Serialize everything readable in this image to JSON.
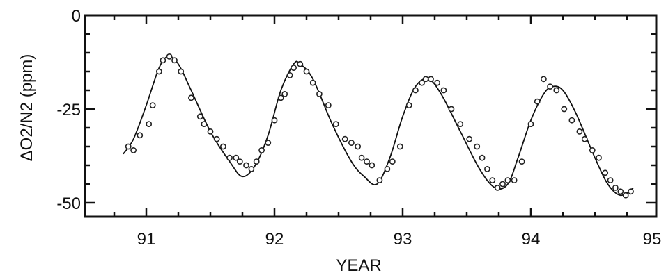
{
  "chart_data": {
    "type": "scatter",
    "title": "",
    "xlabel": "YEAR",
    "ylabel": "ΔO2/N2 (ppm)",
    "xlim": [
      90.5,
      95
    ],
    "ylim": [
      -52,
      0
    ],
    "x_ticks": [
      91,
      92,
      93,
      94,
      95
    ],
    "x_tick_labels": [
      "91",
      "92",
      "93",
      "94",
      "95"
    ],
    "y_ticks": [
      0,
      -25,
      -50
    ],
    "y_tick_labels": [
      "0",
      "-25",
      "-50"
    ],
    "grid": false,
    "legend": "none",
    "series": [
      {
        "kind": "fitted-curve",
        "points": [
          [
            90.82,
            -37
          ],
          [
            90.9,
            -33
          ],
          [
            91.0,
            -24
          ],
          [
            91.1,
            -14
          ],
          [
            91.17,
            -11
          ],
          [
            91.25,
            -13
          ],
          [
            91.35,
            -20
          ],
          [
            91.5,
            -31
          ],
          [
            91.65,
            -39
          ],
          [
            91.75,
            -43
          ],
          [
            91.85,
            -40
          ],
          [
            91.95,
            -32
          ],
          [
            92.05,
            -20
          ],
          [
            92.15,
            -13
          ],
          [
            92.2,
            -13
          ],
          [
            92.3,
            -17
          ],
          [
            92.45,
            -29
          ],
          [
            92.6,
            -39
          ],
          [
            92.7,
            -43
          ],
          [
            92.8,
            -45
          ],
          [
            92.9,
            -38
          ],
          [
            93.0,
            -27
          ],
          [
            93.1,
            -19
          ],
          [
            93.2,
            -17
          ],
          [
            93.3,
            -21
          ],
          [
            93.45,
            -31
          ],
          [
            93.6,
            -41
          ],
          [
            93.72,
            -46
          ],
          [
            93.82,
            -45
          ],
          [
            93.9,
            -38
          ],
          [
            94.0,
            -28
          ],
          [
            94.1,
            -21
          ],
          [
            94.17,
            -19
          ],
          [
            94.25,
            -20
          ],
          [
            94.35,
            -26
          ],
          [
            94.5,
            -38
          ],
          [
            94.6,
            -45
          ],
          [
            94.7,
            -48
          ],
          [
            94.8,
            -46
          ]
        ]
      },
      {
        "kind": "observations",
        "points": [
          [
            90.86,
            -35
          ],
          [
            90.9,
            -36
          ],
          [
            90.95,
            -32
          ],
          [
            91.02,
            -29
          ],
          [
            91.05,
            -24
          ],
          [
            91.1,
            -15
          ],
          [
            91.13,
            -12
          ],
          [
            91.18,
            -11
          ],
          [
            91.22,
            -12
          ],
          [
            91.27,
            -15
          ],
          [
            91.35,
            -22
          ],
          [
            91.42,
            -27
          ],
          [
            91.45,
            -29
          ],
          [
            91.5,
            -31
          ],
          [
            91.55,
            -33
          ],
          [
            91.6,
            -35
          ],
          [
            91.65,
            -38
          ],
          [
            91.7,
            -38
          ],
          [
            91.73,
            -39
          ],
          [
            91.78,
            -40
          ],
          [
            91.82,
            -41
          ],
          [
            91.86,
            -39
          ],
          [
            91.9,
            -36
          ],
          [
            91.95,
            -34
          ],
          [
            92.0,
            -28
          ],
          [
            92.05,
            -22
          ],
          [
            92.08,
            -21
          ],
          [
            92.12,
            -16
          ],
          [
            92.15,
            -14
          ],
          [
            92.2,
            -13
          ],
          [
            92.25,
            -15
          ],
          [
            92.3,
            -18
          ],
          [
            92.35,
            -21
          ],
          [
            92.42,
            -24
          ],
          [
            92.48,
            -29
          ],
          [
            92.55,
            -33
          ],
          [
            92.6,
            -34
          ],
          [
            92.65,
            -35
          ],
          [
            92.68,
            -38
          ],
          [
            92.72,
            -39
          ],
          [
            92.76,
            -40
          ],
          [
            92.82,
            -44
          ],
          [
            92.88,
            -41
          ],
          [
            92.92,
            -39
          ],
          [
            92.98,
            -35
          ],
          [
            93.05,
            -24
          ],
          [
            93.1,
            -20
          ],
          [
            93.15,
            -18
          ],
          [
            93.18,
            -17
          ],
          [
            93.22,
            -17
          ],
          [
            93.27,
            -18
          ],
          [
            93.32,
            -20
          ],
          [
            93.38,
            -25
          ],
          [
            93.45,
            -29
          ],
          [
            93.52,
            -33
          ],
          [
            93.58,
            -35
          ],
          [
            93.62,
            -38
          ],
          [
            93.66,
            -41
          ],
          [
            93.7,
            -44
          ],
          [
            93.74,
            -46
          ],
          [
            93.78,
            -45
          ],
          [
            93.82,
            -44
          ],
          [
            93.87,
            -44
          ],
          [
            93.93,
            -39
          ],
          [
            94.0,
            -29
          ],
          [
            94.05,
            -23
          ],
          [
            94.1,
            -17
          ],
          [
            94.15,
            -19
          ],
          [
            94.2,
            -20
          ],
          [
            94.26,
            -25
          ],
          [
            94.32,
            -28
          ],
          [
            94.38,
            -31
          ],
          [
            94.42,
            -33
          ],
          [
            94.48,
            -36
          ],
          [
            94.53,
            -38
          ],
          [
            94.58,
            -42
          ],
          [
            94.62,
            -44
          ],
          [
            94.66,
            -46
          ],
          [
            94.7,
            -47
          ],
          [
            94.74,
            -48
          ],
          [
            94.78,
            -47
          ]
        ]
      }
    ]
  }
}
